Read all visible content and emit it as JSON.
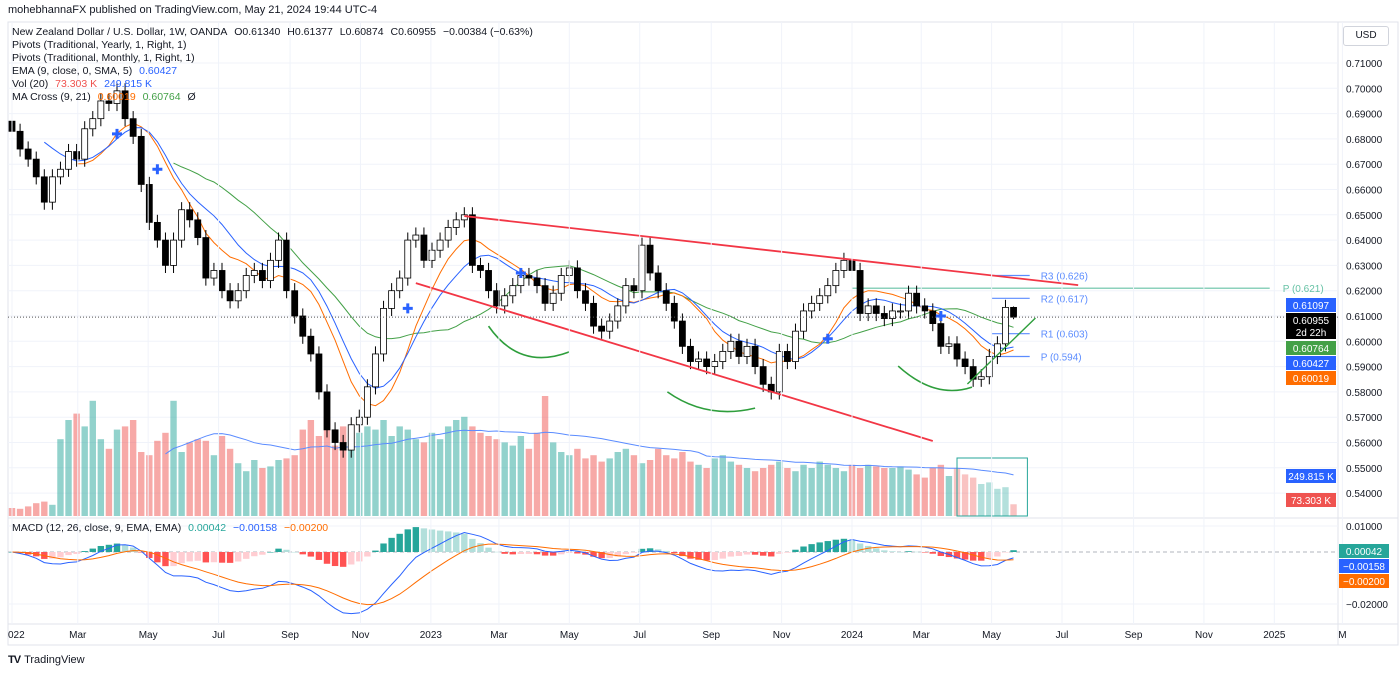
{
  "header": {
    "published": "mohebhannaFX published on TradingView.com, May 21, 2024 19:44 UTC-4",
    "symbol": "New Zealand Dollar / U.S. Dollar, 1W, OANDA",
    "ohlc": {
      "o": "O0.61340",
      "h": "H0.61377",
      "l": "L0.60874",
      "c": "C0.60955",
      "chg": "−0.00384 (−0.63%)"
    },
    "currency_button": "USD"
  },
  "legend": {
    "pivots_yearly": "Pivots (Traditional, Yearly, 1, Right, 1)",
    "pivots_monthly": "Pivots (Traditional, Monthly, 1, Right, 1)",
    "ema": {
      "label": "EMA (9, close, 0, SMA, 5)",
      "value": "0.60427"
    },
    "vol": {
      "label": "Vol (20)",
      "v1": "73.303 K",
      "v2": "249.815 K"
    },
    "ma_cross": {
      "label": "MA Cross (9, 21)",
      "fast": "0.60019",
      "slow": "0.60764",
      "sym": "Ø"
    },
    "macd": {
      "label": "MACD (12, 26, close, 9, EMA, EMA)",
      "hist": "0.00042",
      "macd": "−0.00158",
      "signal": "−0.00200"
    }
  },
  "footer": {
    "brand": "TradingView",
    "logo_mark": "17"
  },
  "colors": {
    "up_body": "#ffffff",
    "down_body": "#000000",
    "vol_up": "#26a69a",
    "vol_down": "#ef5350",
    "ema": "#2962ff",
    "ma_fast": "#ff6d00",
    "ma_slow": "#43a047",
    "macd": "#2962ff",
    "signal": "#ff6d00",
    "channel": "#f23645",
    "arc": "#2e9e3c",
    "pivot_monthly": "#5b8cff",
    "pivot_yearly": "#66c2a5"
  },
  "chart_data": {
    "type": "candlestick",
    "title": "New Zealand Dollar / U.S. Dollar, 1W, OANDA",
    "interval": "1W",
    "first_week": "2022-01-03",
    "price_axis": {
      "ticks": [
        "0.71000",
        "0.70000",
        "0.69000",
        "0.68000",
        "0.67000",
        "0.66000",
        "0.65000",
        "0.64000",
        "0.63000",
        "0.62000",
        "0.61000",
        "0.60000",
        "0.59000",
        "0.58000",
        "0.57000",
        "0.56000",
        "0.55000",
        "0.54000"
      ],
      "range": [
        0.535,
        0.716
      ]
    },
    "macd_axis": {
      "ticks": [
        "0.01000",
        "−0.02000"
      ],
      "values": [
        0.01,
        -0.02
      ]
    },
    "time_axis": [
      {
        "label": "022",
        "date": "2022-01-03"
      },
      {
        "label": "Mar",
        "date": "2022-03-01"
      },
      {
        "label": "May",
        "date": "2022-05-01"
      },
      {
        "label": "Jul",
        "date": "2022-07-01"
      },
      {
        "label": "Sep",
        "date": "2022-09-01"
      },
      {
        "label": "Nov",
        "date": "2022-11-01"
      },
      {
        "label": "2023",
        "date": "2023-01-01"
      },
      {
        "label": "Mar",
        "date": "2023-03-01"
      },
      {
        "label": "May",
        "date": "2023-05-01"
      },
      {
        "label": "Jul",
        "date": "2023-07-01"
      },
      {
        "label": "Sep",
        "date": "2023-09-01"
      },
      {
        "label": "Nov",
        "date": "2023-11-01"
      },
      {
        "label": "2024",
        "date": "2024-01-01"
      },
      {
        "label": "Mar",
        "date": "2024-03-01"
      },
      {
        "label": "May",
        "date": "2024-05-01"
      },
      {
        "label": "Jul",
        "date": "2024-07-01"
      },
      {
        "label": "Sep",
        "date": "2024-09-01"
      },
      {
        "label": "Nov",
        "date": "2024-11-01"
      },
      {
        "label": "2025",
        "date": "2025-01-01"
      },
      {
        "label": "M",
        "date": "2025-03-01"
      }
    ],
    "close": [
      0.683,
      0.676,
      0.672,
      0.665,
      0.655,
      0.665,
      0.668,
      0.675,
      0.672,
      0.684,
      0.688,
      0.695,
      0.694,
      0.699,
      0.688,
      0.681,
      0.662,
      0.647,
      0.64,
      0.63,
      0.64,
      0.652,
      0.648,
      0.641,
      0.625,
      0.628,
      0.62,
      0.616,
      0.62,
      0.626,
      0.628,
      0.624,
      0.632,
      0.64,
      0.62,
      0.61,
      0.602,
      0.595,
      0.58,
      0.565,
      0.56,
      0.557,
      0.567,
      0.57,
      0.582,
      0.595,
      0.613,
      0.62,
      0.625,
      0.64,
      0.642,
      0.632,
      0.636,
      0.64,
      0.645,
      0.648,
      0.65,
      0.63,
      0.628,
      0.62,
      0.614,
      0.618,
      0.622,
      0.626,
      0.625,
      0.622,
      0.615,
      0.619,
      0.626,
      0.629,
      0.62,
      0.615,
      0.606,
      0.604,
      0.608,
      0.614,
      0.622,
      0.62,
      0.638,
      0.627,
      0.62,
      0.615,
      0.608,
      0.598,
      0.592,
      0.593,
      0.59,
      0.592,
      0.596,
      0.6,
      0.594,
      0.598,
      0.59,
      0.583,
      0.58,
      0.596,
      0.592,
      0.604,
      0.612,
      0.615,
      0.618,
      0.622,
      0.628,
      0.632,
      0.628,
      0.611,
      0.614,
      0.611,
      0.609,
      0.612,
      0.612,
      0.619,
      0.614,
      0.612,
      0.607,
      0.598,
      0.599,
      0.593,
      0.59,
      0.585,
      0.586,
      0.594,
      0.599,
      0.6134,
      0.60955
    ],
    "last_open": 0.6134,
    "last_high": 0.61377,
    "last_low": 0.60874,
    "volume_k": [
      50,
      45,
      60,
      80,
      90,
      70,
      480,
      600,
      640,
      560,
      720,
      480,
      420,
      540,
      560,
      600,
      400,
      380,
      470,
      520,
      720,
      400,
      460,
      480,
      470,
      380,
      500,
      420,
      330,
      280,
      350,
      300,
      310,
      350,
      360,
      380,
      540,
      600,
      500,
      620,
      440,
      560,
      460,
      520,
      560,
      540,
      600,
      500,
      560,
      540,
      480,
      460,
      520,
      480,
      560,
      600,
      620,
      560,
      520,
      500,
      480,
      460,
      440,
      500,
      420,
      520,
      750,
      460,
      400,
      380,
      420,
      360,
      380,
      340,
      360,
      400,
      420,
      380,
      330,
      350,
      420,
      380,
      360,
      400,
      340,
      320,
      300,
      360,
      380,
      340,
      320,
      300,
      280,
      300,
      320,
      340,
      300,
      280,
      320,
      300,
      340,
      320,
      300,
      280,
      320,
      300,
      320,
      310,
      300,
      300,
      310,
      290,
      260,
      240,
      300,
      320,
      250,
      300,
      260,
      240,
      200,
      210,
      170,
      180,
      73.303
    ],
    "price_badges": [
      {
        "value": "0.61097",
        "price": 0.61097,
        "color": "#2962ff"
      },
      {
        "value": "0.60955",
        "sub": "2d 22h",
        "price": 0.60955,
        "color": "#000000"
      },
      {
        "value": "0.60764",
        "price": 0.60764,
        "color": "#43a047"
      },
      {
        "value": "0.60427",
        "price": 0.60427,
        "color": "#2962ff"
      },
      {
        "value": "0.60019",
        "price": 0.60019,
        "color": "#ff6d00"
      }
    ],
    "volume_badges": [
      {
        "value": "249.815 K",
        "vol": 249.815,
        "color": "#2962ff"
      },
      {
        "value": "73.303 K",
        "vol": 73.303,
        "color": "#ef5350"
      }
    ],
    "macd_badges": [
      {
        "value": "0.00042",
        "v": 0.00042,
        "color": "#26a69a"
      },
      {
        "value": "−0.00158",
        "v": -0.00158,
        "color": "#2962ff"
      },
      {
        "value": "−0.00200",
        "v": -0.002,
        "color": "#ff6d00"
      }
    ],
    "pivots_monthly": [
      {
        "label": "R3 (0.626)",
        "price": 0.626
      },
      {
        "label": "R2 (0.617)",
        "price": 0.617
      },
      {
        "label": "R1 (0.603)",
        "price": 0.603
      },
      {
        "label": "P (0.594)",
        "price": 0.594
      }
    ],
    "pivots_monthly_span": [
      "2024-05-01",
      "2024-06-03"
    ],
    "pivot_yearly": {
      "label": "P (0.621)",
      "price": 0.621,
      "span": [
        "2024-01-01",
        "2024-12-28"
      ]
    },
    "drawings": {
      "channel_upper": [
        [
          "2023-01-30",
          0.6495
        ],
        [
          "2024-07-15",
          0.6222
        ]
      ],
      "channel_lower": [
        [
          "2022-12-19",
          0.623
        ],
        [
          "2024-03-11",
          0.5606
        ]
      ],
      "arcs": [
        [
          [
            "2023-02-20",
            0.606
          ],
          [
            "2023-03-23",
            0.5946
          ],
          [
            "2023-05-01",
            0.5958
          ]
        ],
        [
          [
            "2023-07-25",
            0.58
          ],
          [
            "2023-08-30",
            0.5729
          ],
          [
            "2023-10-09",
            0.5736
          ]
        ],
        [
          [
            "2024-02-10",
            0.5902
          ],
          [
            "2024-03-13",
            0.5815
          ],
          [
            "2024-04-14",
            0.5819
          ]
        ]
      ],
      "rising_line": [
        [
          "2024-04-10",
          0.5831
        ],
        [
          "2024-06-08",
          0.6092
        ]
      ],
      "cross_signals": [
        [
          "2022-04-04",
          0.682
        ],
        [
          "2022-05-09",
          0.668
        ],
        [
          "2022-12-12",
          0.613
        ],
        [
          "2023-03-20",
          0.627
        ],
        [
          "2023-12-11",
          0.601
        ],
        [
          "2024-03-18",
          0.61
        ]
      ],
      "volume_box": [
        "2024-04-01",
        "2024-06-01"
      ]
    }
  }
}
